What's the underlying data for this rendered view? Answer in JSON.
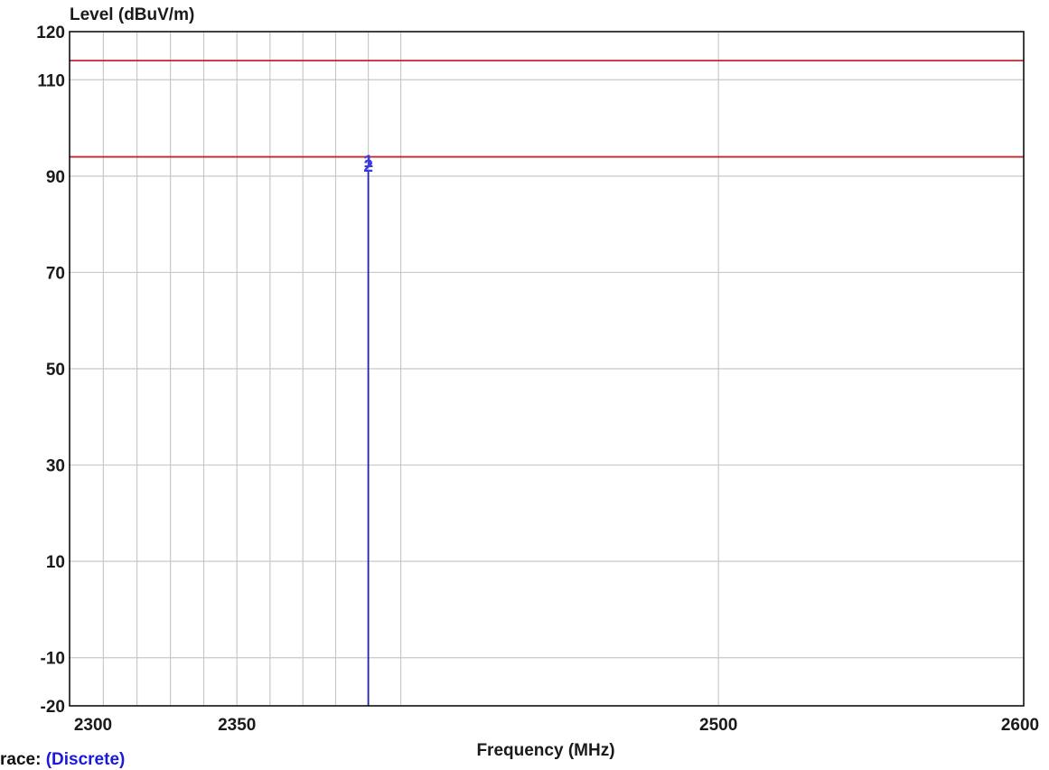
{
  "chart_data": {
    "type": "line",
    "ylabel": "Level (dBuV/m)",
    "xlabel": "Frequency (MHz)",
    "ylim": [
      -20,
      120
    ],
    "xlim": [
      2300,
      2600
    ],
    "x_scale": "log",
    "y_ticks": [
      120,
      110,
      90,
      70,
      50,
      30,
      10,
      -10,
      -20
    ],
    "x_ticks": [
      2300,
      2350,
      2500,
      2600
    ],
    "grid": true,
    "limit_lines": [
      {
        "y": 114,
        "color": "#c0282d"
      },
      {
        "y": 94,
        "color": "#c0282d"
      }
    ],
    "series": [
      {
        "x": [
          2390,
          2390
        ],
        "y": [
          -20,
          91
        ],
        "color": "#2323a8"
      }
    ],
    "markers": [
      {
        "label": "1",
        "x": 2390,
        "y": 93.2
      },
      {
        "label": "2",
        "x": 2390,
        "y": 92.2
      }
    ]
  },
  "trace": {
    "prefix": "race:",
    "value": "(Discrete)"
  }
}
